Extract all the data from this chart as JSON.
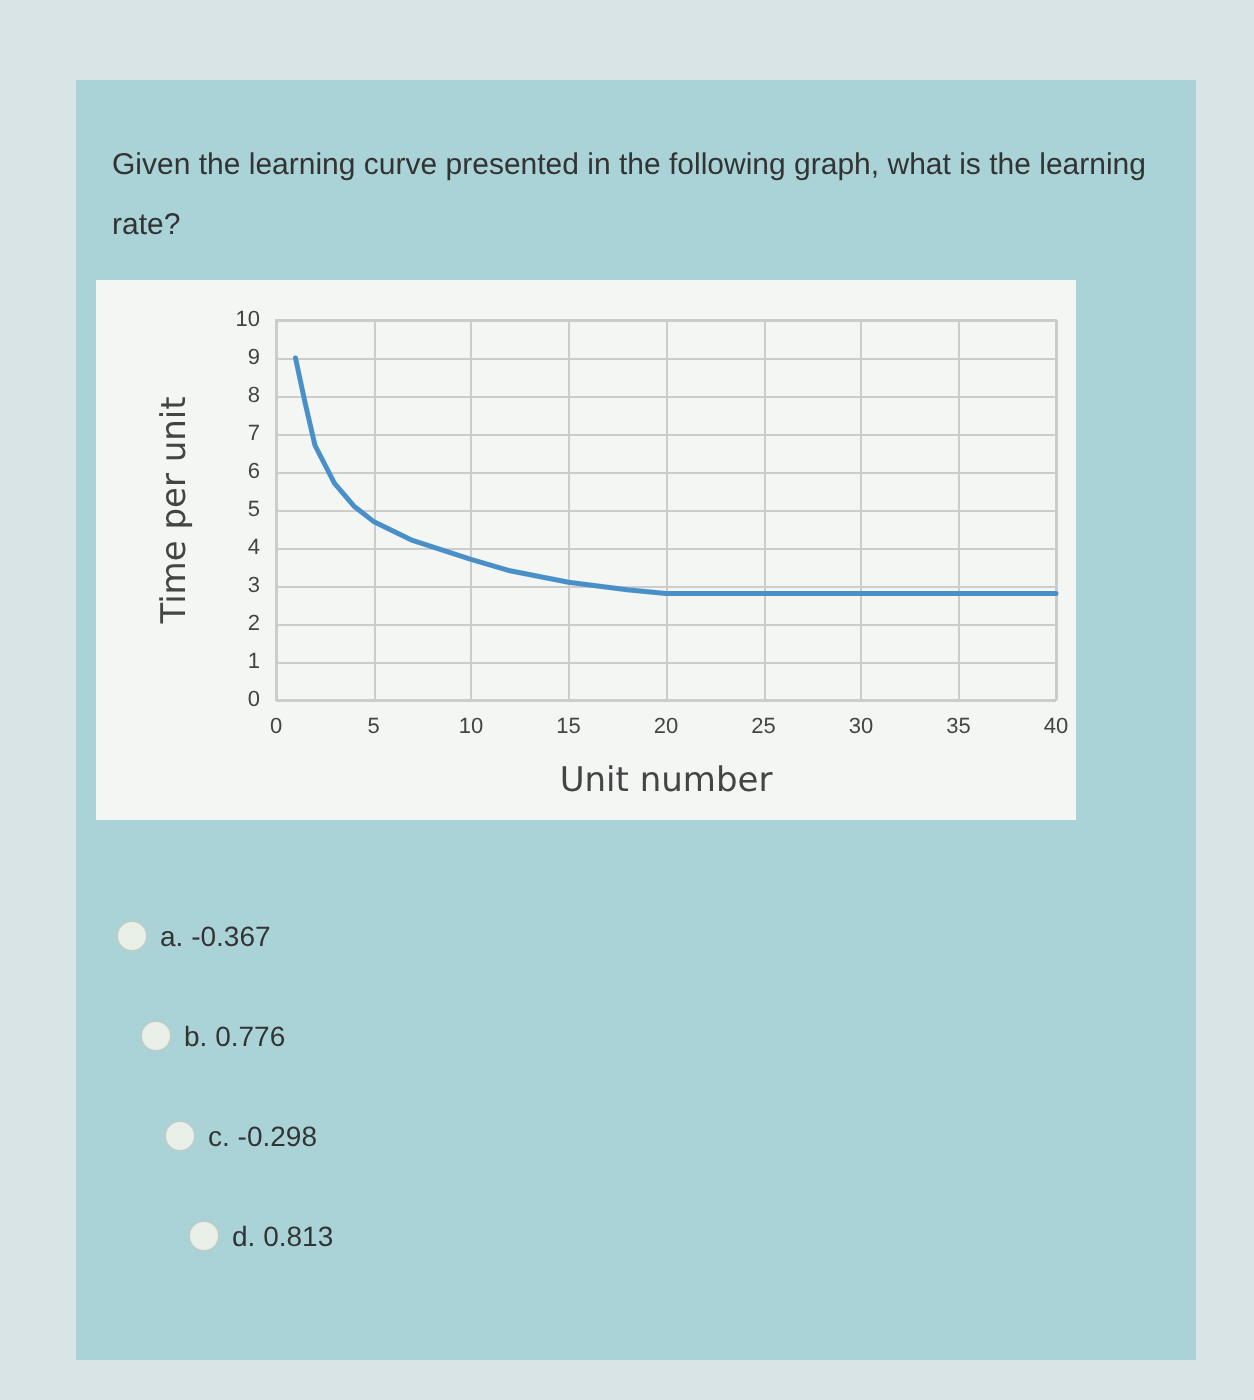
{
  "chart_data": {
    "type": "line",
    "title": "Given the learning curve presented in the following graph, what is the learning rate?",
    "xlabel": "Unit number",
    "ylabel": "Time per unit",
    "series": [
      {
        "color": "#4a90c8",
        "x": [
          1,
          1.5,
          2,
          3,
          4,
          5,
          7,
          10,
          12,
          15,
          18,
          20,
          25,
          30,
          35,
          40
        ],
        "values": [
          9,
          7.8,
          6.7,
          5.7,
          5.1,
          4.7,
          4.2,
          3.7,
          3.4,
          3.1,
          2.9,
          2.8,
          2.8,
          2.8,
          2.8,
          2.8
        ]
      }
    ],
    "xlim": [
      0,
      40
    ],
    "xticks": [
      0,
      5,
      10,
      15,
      20,
      25,
      30,
      35,
      40
    ],
    "ylim": [
      0,
      10
    ],
    "yticks": [
      0,
      1,
      2,
      3,
      4,
      5,
      6,
      7,
      8,
      9,
      10
    ],
    "grid": true,
    "marker": "none",
    "line_style": "solid",
    "annotations": [
      "a. -0.367",
      "b. 0.776",
      "c. -0.298",
      "d. 0.813"
    ]
  }
}
